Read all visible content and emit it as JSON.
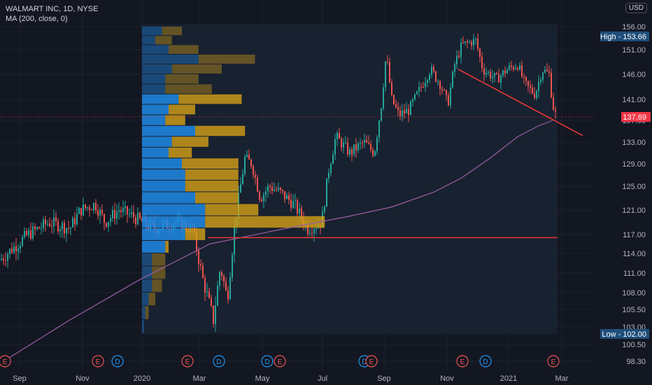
{
  "header": {
    "symbol_line": "WALMART INC, 1D, NYSE",
    "indicator_line": "MA (200, close, 0)",
    "currency": "USD"
  },
  "colors": {
    "background": "#131722",
    "up": "#26a69a",
    "down": "#ef5350",
    "ma": "#9c5ea3",
    "vp_up": "#1e88e5",
    "vp_down": "#d4a017",
    "trendline": "#e53935",
    "price_tag": "#f23645",
    "high_low_tag": "#1f4e79"
  },
  "chart_data": {
    "type": "candlestick",
    "title": "WALMART INC, 1D, NYSE",
    "y_axis": {
      "ticks": [
        156.0,
        151.0,
        146.0,
        141.0,
        137.0,
        133.0,
        129.0,
        125.0,
        121.0,
        117.0,
        114.0,
        111.0,
        108.0,
        105.5,
        103.0,
        100.5,
        98.3
      ],
      "range": [
        97.5,
        157.5
      ]
    },
    "x_axis": {
      "ticks": [
        "Sep",
        "Nov",
        "2020",
        "Mar",
        "May",
        "Jul",
        "Sep",
        "Nov",
        "2021",
        "Mar"
      ]
    },
    "price_markers": {
      "high": {
        "label": "High",
        "value": "153.66"
      },
      "last": {
        "value": "137.69"
      },
      "low": {
        "label": "Low",
        "value": "102.00"
      }
    },
    "events": [
      {
        "date": "Aug 2019",
        "type": "E"
      },
      {
        "date": "Nov 2019",
        "type": "E"
      },
      {
        "date": "Dec 2019",
        "type": "D"
      },
      {
        "date": "Feb 2020",
        "type": "E"
      },
      {
        "date": "Mar 2020",
        "type": "D"
      },
      {
        "date": "May 2020",
        "type": "D"
      },
      {
        "date": "May 2020",
        "type": "E"
      },
      {
        "date": "Aug 2020",
        "type": "D"
      },
      {
        "date": "Aug 2020",
        "type": "E"
      },
      {
        "date": "Nov 2020",
        "type": "E"
      },
      {
        "date": "Dec 2020",
        "type": "D"
      },
      {
        "date": "Feb 2021",
        "type": "E"
      }
    ],
    "moving_average": {
      "name": "MA (200, close, 0)",
      "points": [
        [
          0,
          98
        ],
        [
          100,
          104
        ],
        [
          200,
          110
        ],
        [
          300,
          115.5
        ],
        [
          400,
          117.8
        ],
        [
          500,
          120
        ],
        [
          560,
          121.5
        ],
        [
          620,
          124
        ],
        [
          660,
          126.5
        ],
        [
          700,
          130
        ],
        [
          740,
          134
        ],
        [
          770,
          136
        ],
        [
          790,
          137
        ]
      ]
    },
    "volume_profile_bins": [
      {
        "price": 155.0,
        "up": 30,
        "down": 30
      },
      {
        "price": 153.0,
        "up": 20,
        "down": 25
      },
      {
        "price": 151.0,
        "up": 40,
        "down": 45
      },
      {
        "price": 149.0,
        "up": 85,
        "down": 85
      },
      {
        "price": 147.0,
        "up": 45,
        "down": 75
      },
      {
        "price": 145.0,
        "up": 35,
        "down": 50
      },
      {
        "price": 143.0,
        "up": 35,
        "down": 70
      },
      {
        "price": 141.0,
        "up": 55,
        "down": 95
      },
      {
        "price": 139.0,
        "up": 40,
        "down": 40
      },
      {
        "price": 137.0,
        "up": 35,
        "down": 30
      },
      {
        "price": 135.0,
        "up": 80,
        "down": 75
      },
      {
        "price": 133.0,
        "up": 45,
        "down": 55
      },
      {
        "price": 131.0,
        "up": 40,
        "down": 35
      },
      {
        "price": 129.0,
        "up": 60,
        "down": 85
      },
      {
        "price": 127.0,
        "up": 65,
        "down": 80
      },
      {
        "price": 125.0,
        "up": 65,
        "down": 80
      },
      {
        "price": 123.0,
        "up": 80,
        "down": 65
      },
      {
        "price": 121.0,
        "up": 95,
        "down": 80
      },
      {
        "price": 119.0,
        "up": 95,
        "down": 180
      },
      {
        "price": 117.0,
        "up": 65,
        "down": 30
      },
      {
        "price": 115.0,
        "up": 35,
        "down": 5
      },
      {
        "price": 113.0,
        "up": 15,
        "down": 20
      },
      {
        "price": 111.0,
        "up": 15,
        "down": 20
      },
      {
        "price": 109.0,
        "up": 15,
        "down": 15
      },
      {
        "price": 107.0,
        "up": 10,
        "down": 10
      },
      {
        "price": 105.0,
        "up": 5,
        "down": 5
      },
      {
        "price": 103.0,
        "up": 3,
        "down": 0
      }
    ],
    "horizontal_line": {
      "value": 116.5
    },
    "trendline": {
      "from": 147.0,
      "to": 134.2
    }
  }
}
